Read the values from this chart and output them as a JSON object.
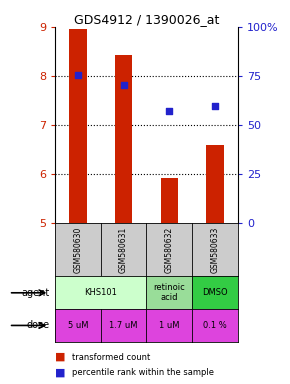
{
  "title": "GDS4912 / 1390026_at",
  "samples": [
    "GSM580630",
    "GSM580631",
    "GSM580632",
    "GSM580633"
  ],
  "bar_values": [
    8.95,
    8.42,
    5.92,
    6.58
  ],
  "scatter_values": [
    8.02,
    7.82,
    7.28,
    7.38
  ],
  "ylim": [
    5,
    9
  ],
  "yticks_left": [
    5,
    6,
    7,
    8,
    9
  ],
  "yticks_right": [
    0,
    25,
    50,
    75,
    100
  ],
  "yticks_right_labels": [
    "0",
    "25",
    "50",
    "75",
    "100%"
  ],
  "bar_color": "#cc2200",
  "scatter_color": "#2222cc",
  "agent_spans": [
    [
      0,
      1,
      "KHS101",
      "#ccffcc"
    ],
    [
      2,
      2,
      "retinoic\nacid",
      "#99dd99"
    ],
    [
      3,
      3,
      "DMSO",
      "#33cc44"
    ]
  ],
  "dose_labels": [
    "5 uM",
    "1.7 uM",
    "1 uM",
    "0.1 %"
  ],
  "dose_color": "#dd44dd",
  "sample_bg_color": "#cccccc",
  "left_label_color": "#cc2200",
  "right_label_color": "#2222cc",
  "legend_bar_label": "transformed count",
  "legend_scatter_label": "percentile rank within the sample"
}
